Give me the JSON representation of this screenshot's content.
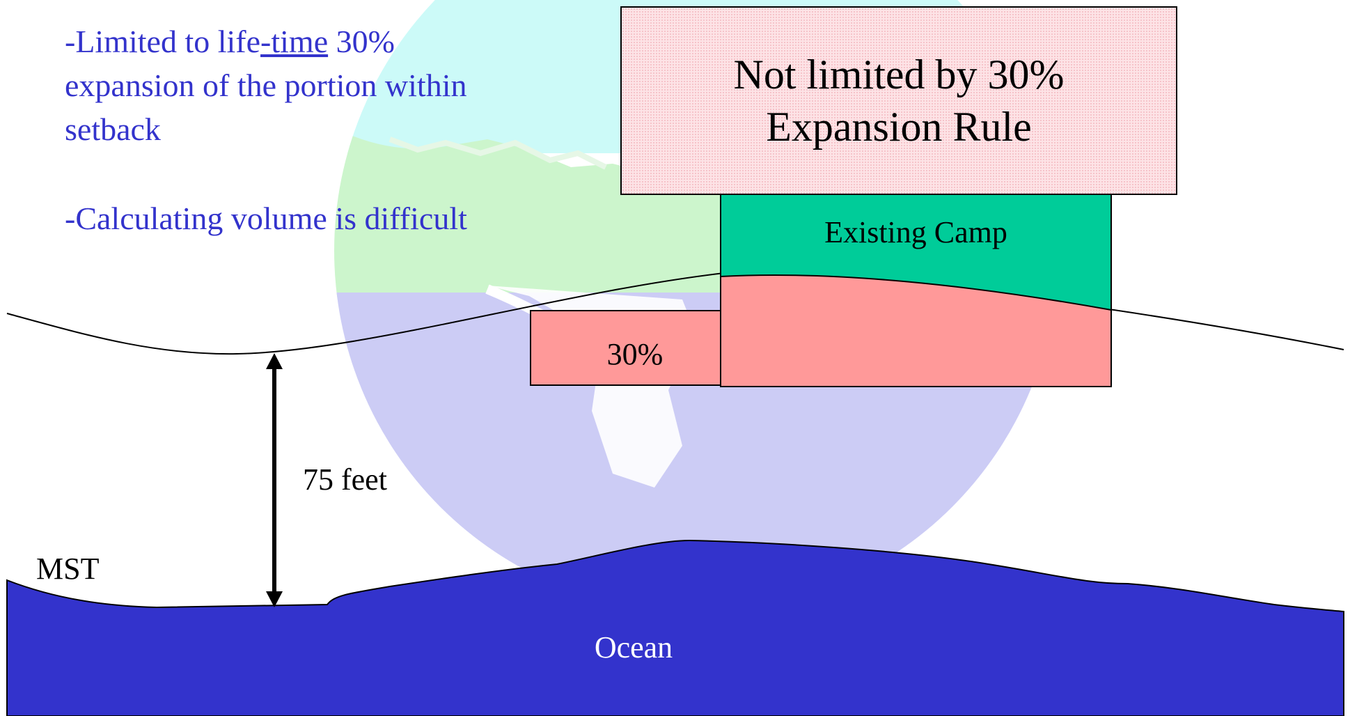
{
  "bullets": {
    "line1_before": "-Limited to life",
    "line1_underlined": "-time",
    "line1_after": " 30%",
    "line2": "expansion of the portion within",
    "line3": "setback",
    "line4": "-Calculating volume is difficult"
  },
  "rule_box": {
    "line1": "Not limited by 30%",
    "line2": "Expansion Rule"
  },
  "labels": {
    "existing_camp": "Existing Camp",
    "expansion": "30%",
    "distance": "75 feet",
    "mst": "MST",
    "ocean": "Ocean"
  },
  "colors": {
    "bullet_text": "#3333cc",
    "existing_camp": "#00cc99",
    "expansion_fill": "#ff9999",
    "ocean": "#3333cc",
    "rule_box_fill": "#fde3e6"
  }
}
